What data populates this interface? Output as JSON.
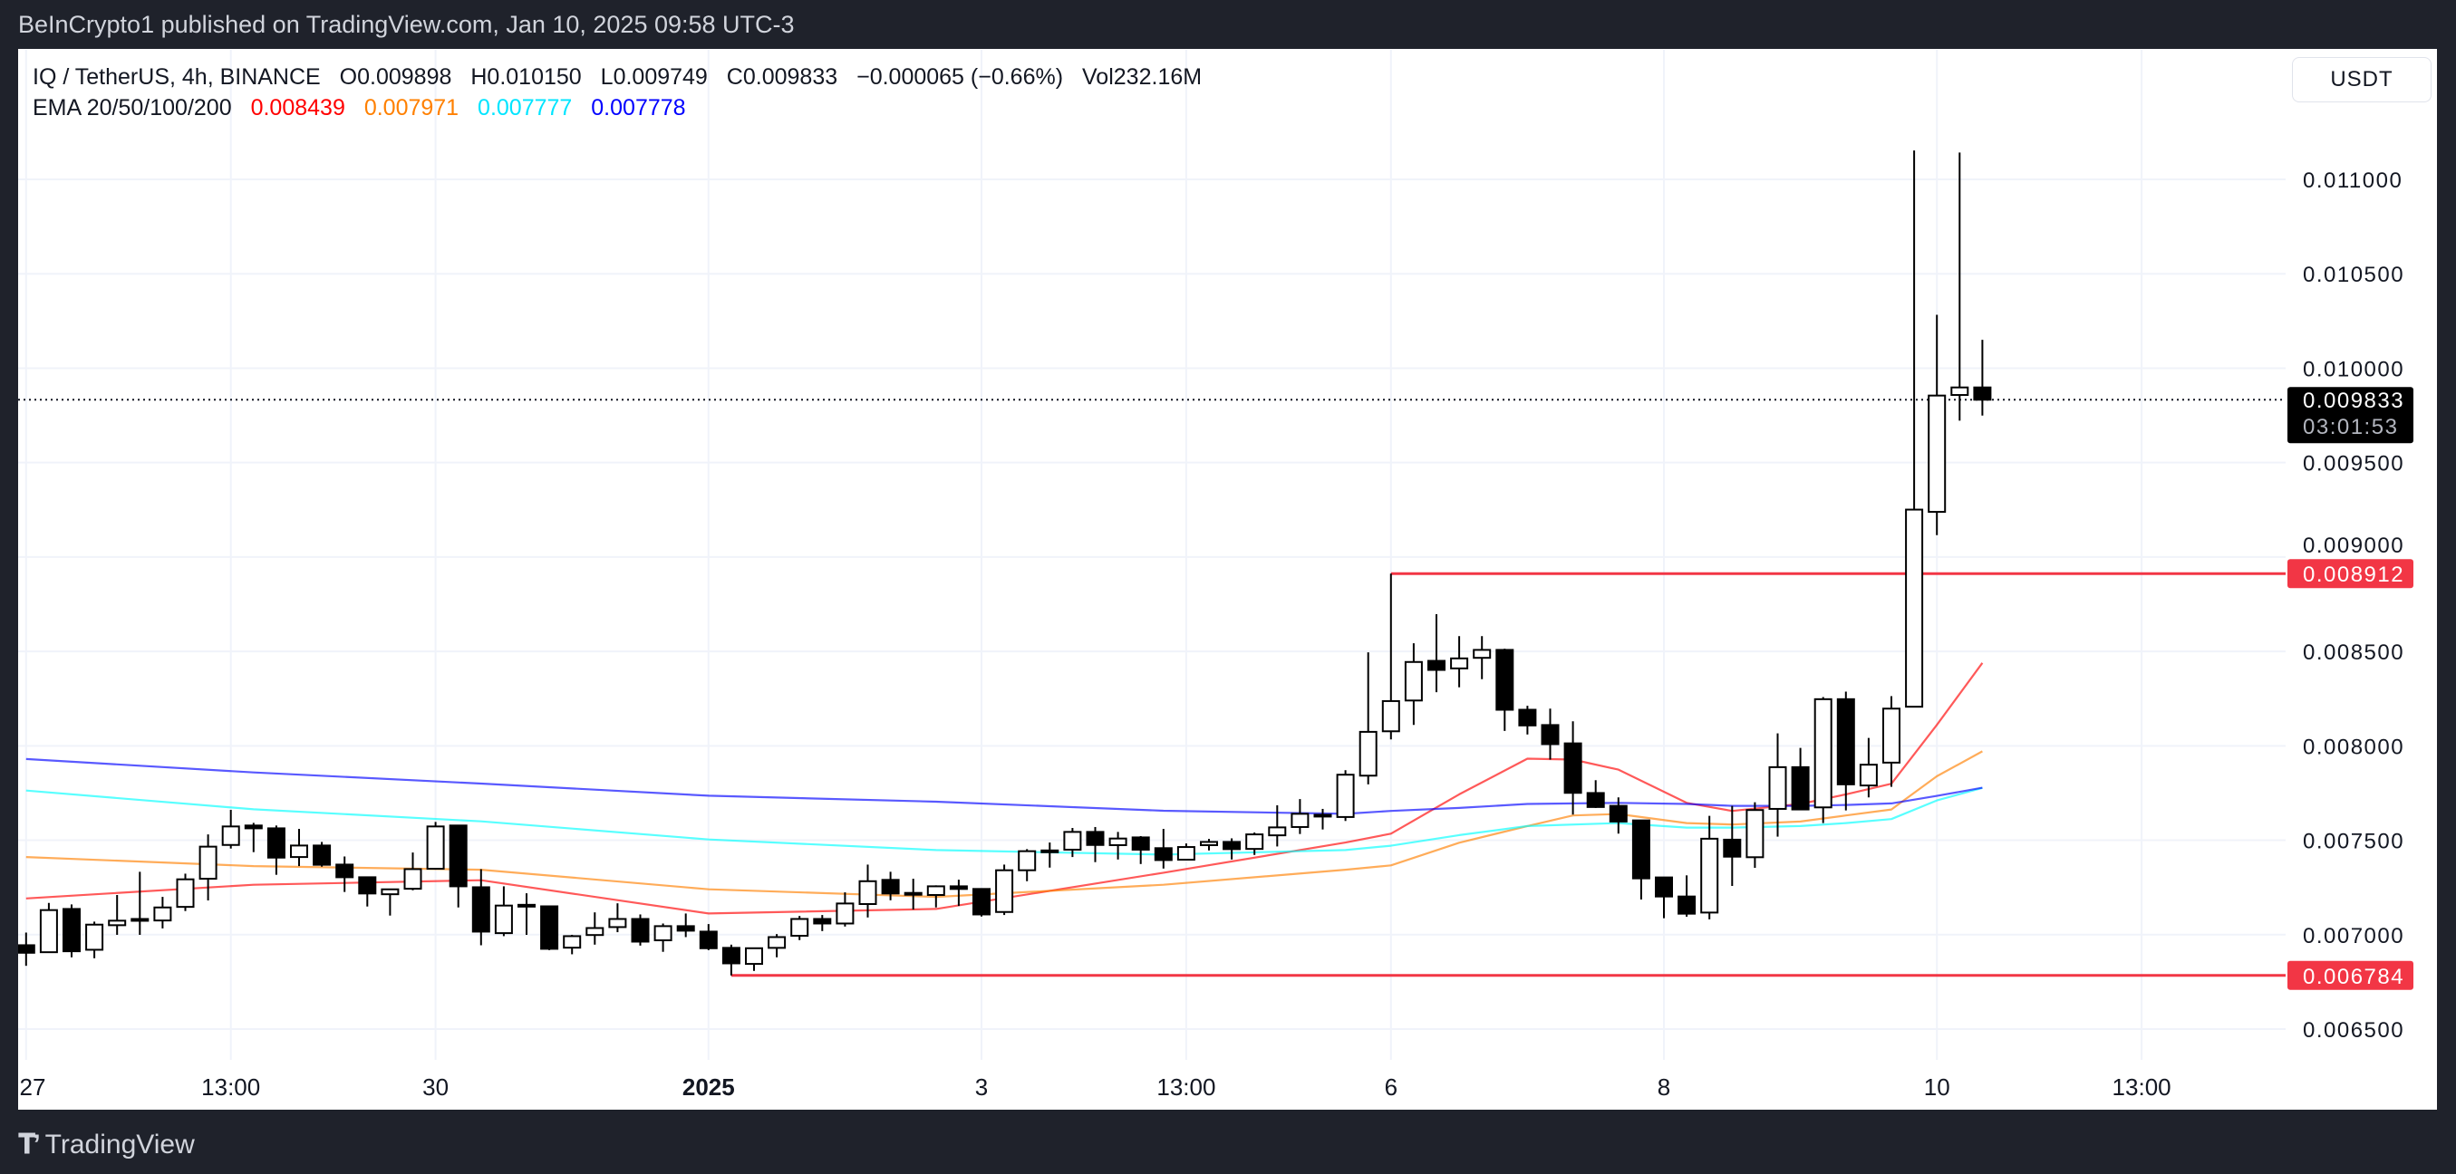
{
  "header": {
    "published": "BeInCrypto1 published on TradingView.com, Jan 10, 2025 09:58 UTC-3"
  },
  "legend": {
    "symbol": "IQ / TetherUS, 4h, BINANCE",
    "open_label": "O",
    "open": "0.009898",
    "high_label": "H",
    "high": "0.010150",
    "low_label": "L",
    "low": "0.009749",
    "close_label": "C",
    "close": "0.009833",
    "change": "−0.000065 (−0.66%)",
    "vol_label": "Vol",
    "vol": "232.16M",
    "ema_label": "EMA 20/50/100/200",
    "ema_values": [
      "0.008439",
      "0.007971",
      "0.007777",
      "0.007778"
    ]
  },
  "currency_button": "USDT",
  "footer": {
    "brand": "TradingView",
    "logo_text": "TV"
  },
  "chart_data": {
    "type": "candlestick",
    "interval": "4h",
    "ylim": [
      0.006073,
      0.011686
    ],
    "grid": true,
    "y_ticks": [
      "0.006500",
      "0.007000",
      "0.007500",
      "0.008000",
      "0.008500",
      "0.009000",
      "0.009500",
      "0.010000",
      "0.010500",
      "0.011000"
    ],
    "x_ticks": [
      {
        "bar": 0,
        "label": "27",
        "bold": false
      },
      {
        "bar": 9,
        "label": "13:00",
        "bold": false
      },
      {
        "bar": 18,
        "label": "30",
        "bold": false
      },
      {
        "bar": 30,
        "label": "2025",
        "bold": true
      },
      {
        "bar": 42,
        "label": "3",
        "bold": false
      },
      {
        "bar": 51,
        "label": "13:00",
        "bold": false
      },
      {
        "bar": 60,
        "label": "6",
        "bold": false
      },
      {
        "bar": 72,
        "label": "8",
        "bold": false
      },
      {
        "bar": 84,
        "label": "10",
        "bold": false
      },
      {
        "bar": 93,
        "label": "13:00",
        "bold": false
      }
    ],
    "colors": {
      "up_fill": "#ffffff",
      "down_fill": "#000000",
      "outline": "#000000",
      "level": "#f23645"
    },
    "ohlc": [
      [
        0.006944,
        0.007011,
        0.006835,
        0.006904
      ],
      [
        0.006907,
        0.007168,
        0.006907,
        0.00713
      ],
      [
        0.007136,
        0.00716,
        0.00688,
        0.006912
      ],
      [
        0.00692,
        0.007069,
        0.006875,
        0.007053
      ],
      [
        0.00705,
        0.00721,
        0.006999,
        0.007074
      ],
      [
        0.00708,
        0.007333,
        0.006999,
        0.007083
      ],
      [
        0.007075,
        0.0072,
        0.007033,
        0.007144
      ],
      [
        0.007147,
        0.007323,
        0.007125,
        0.007293
      ],
      [
        0.007296,
        0.007531,
        0.007181,
        0.007466
      ],
      [
        0.007475,
        0.007661,
        0.007456,
        0.007573
      ],
      [
        0.007578,
        0.007592,
        0.007437,
        0.007563
      ],
      [
        0.007563,
        0.007578,
        0.007317,
        0.007408
      ],
      [
        0.007411,
        0.00756,
        0.007363,
        0.007472
      ],
      [
        0.007472,
        0.007491,
        0.00736,
        0.00737
      ],
      [
        0.007371,
        0.007414,
        0.007226,
        0.007304
      ],
      [
        0.007304,
        0.007304,
        0.007149,
        0.007218
      ],
      [
        0.007214,
        0.00724,
        0.007101,
        0.00724
      ],
      [
        0.007243,
        0.007435,
        0.007235,
        0.007347
      ],
      [
        0.007349,
        0.007597,
        0.007344,
        0.007573
      ],
      [
        0.007578,
        0.007581,
        0.007144,
        0.007256
      ],
      [
        0.007251,
        0.007347,
        0.006944,
        0.007016
      ],
      [
        0.007008,
        0.007256,
        0.006992,
        0.007154
      ],
      [
        0.007155,
        0.007219,
        0.006999,
        0.007158
      ],
      [
        0.00715,
        0.00715,
        0.006918,
        0.006925
      ],
      [
        0.006931,
        0.006999,
        0.006896,
        0.006992
      ],
      [
        0.006998,
        0.007118,
        0.006947,
        0.007035
      ],
      [
        0.00704,
        0.007166,
        0.007013,
        0.007083
      ],
      [
        0.007083,
        0.007107,
        0.006942,
        0.006963
      ],
      [
        0.00697,
        0.007059,
        0.006909,
        0.007045
      ],
      [
        0.007045,
        0.007112,
        0.006987,
        0.007021
      ],
      [
        0.007016,
        0.007056,
        0.006918,
        0.006928
      ],
      [
        0.00693,
        0.006947,
        0.006784,
        0.006848
      ],
      [
        0.006845,
        0.006928,
        0.006808,
        0.006928
      ],
      [
        0.00693,
        0.007003,
        0.00688,
        0.006987
      ],
      [
        0.006994,
        0.007099,
        0.006971,
        0.007083
      ],
      [
        0.007083,
        0.007104,
        0.007019,
        0.007059
      ],
      [
        0.007059,
        0.007224,
        0.007043,
        0.007165
      ],
      [
        0.007162,
        0.007371,
        0.007091,
        0.007283
      ],
      [
        0.00729,
        0.007333,
        0.007182,
        0.007218
      ],
      [
        0.007218,
        0.007296,
        0.007133,
        0.007221
      ],
      [
        0.00721,
        0.007261,
        0.007144,
        0.007256
      ],
      [
        0.007256,
        0.007291,
        0.007152,
        0.007242
      ],
      [
        0.007242,
        0.007242,
        0.007096,
        0.007107
      ],
      [
        0.00712,
        0.007371,
        0.007104,
        0.007341
      ],
      [
        0.007341,
        0.007453,
        0.007283,
        0.007442
      ],
      [
        0.007443,
        0.007488,
        0.007355,
        0.007446
      ],
      [
        0.00745,
        0.007565,
        0.007411,
        0.007544
      ],
      [
        0.007544,
        0.00757,
        0.007384,
        0.007475
      ],
      [
        0.007474,
        0.007544,
        0.007398,
        0.007509
      ],
      [
        0.007515,
        0.007522,
        0.007374,
        0.00745
      ],
      [
        0.007458,
        0.00756,
        0.00735,
        0.007395
      ],
      [
        0.007397,
        0.007483,
        0.007397,
        0.007464
      ],
      [
        0.007474,
        0.007507,
        0.007446,
        0.007491
      ],
      [
        0.007491,
        0.00751,
        0.007398,
        0.007453
      ],
      [
        0.007454,
        0.007541,
        0.007422,
        0.007531
      ],
      [
        0.007526,
        0.007685,
        0.007467,
        0.007568
      ],
      [
        0.00757,
        0.007718,
        0.007533,
        0.00764
      ],
      [
        0.007632,
        0.007666,
        0.007557,
        0.007635
      ],
      [
        0.007623,
        0.007871,
        0.007602,
        0.007847
      ],
      [
        0.007842,
        0.008495,
        0.007796,
        0.008074
      ],
      [
        0.008077,
        0.008912,
        0.008034,
        0.008237
      ],
      [
        0.00824,
        0.008543,
        0.008111,
        0.008444
      ],
      [
        0.00845,
        0.008697,
        0.008284,
        0.008402
      ],
      [
        0.00841,
        0.008581,
        0.00831,
        0.008463
      ],
      [
        0.008466,
        0.008581,
        0.008353,
        0.008508
      ],
      [
        0.008508,
        0.008514,
        0.008079,
        0.008191
      ],
      [
        0.008191,
        0.008212,
        0.00806,
        0.008108
      ],
      [
        0.00811,
        0.008197,
        0.007927,
        0.008009
      ],
      [
        0.008013,
        0.00813,
        0.007636,
        0.007751
      ],
      [
        0.00775,
        0.007818,
        0.007671,
        0.007676
      ],
      [
        0.007682,
        0.007727,
        0.007535,
        0.007599
      ],
      [
        0.007605,
        0.007605,
        0.007186,
        0.007298
      ],
      [
        0.007303,
        0.007303,
        0.007087,
        0.007202
      ],
      [
        0.007202,
        0.007314,
        0.007095,
        0.007111
      ],
      [
        0.007117,
        0.007629,
        0.007081,
        0.007508
      ],
      [
        0.007503,
        0.007682,
        0.007258,
        0.007413
      ],
      [
        0.00741,
        0.007701,
        0.007354,
        0.00766
      ],
      [
        0.007666,
        0.008066,
        0.007519,
        0.007887
      ],
      [
        0.007887,
        0.007989,
        0.007663,
        0.007663
      ],
      [
        0.007674,
        0.008258,
        0.007591,
        0.008247
      ],
      [
        0.008247,
        0.008287,
        0.007658,
        0.007796
      ],
      [
        0.00779,
        0.008042,
        0.007727,
        0.0079
      ],
      [
        0.007911,
        0.008263,
        0.007783,
        0.008197
      ],
      [
        0.008207,
        0.011153,
        0.008207,
        0.009251
      ],
      [
        0.009239,
        0.010283,
        0.009116,
        0.009855
      ],
      [
        0.009858,
        0.011142,
        0.009722,
        0.009898
      ],
      [
        0.009898,
        0.01015,
        0.009749,
        0.009833
      ]
    ],
    "ema": [
      {
        "period": 20,
        "color": "#ff0000",
        "points": [
          [
            0,
            0.007192
          ],
          [
            10,
            0.007264
          ],
          [
            20,
            0.007288
          ],
          [
            30,
            0.007112
          ],
          [
            40,
            0.007136
          ],
          [
            50,
            0.007328
          ],
          [
            58,
            0.007488
          ],
          [
            60,
            0.007535
          ],
          [
            63,
            0.007743
          ],
          [
            66,
            0.007932
          ],
          [
            68,
            0.007927
          ],
          [
            70,
            0.007874
          ],
          [
            73,
            0.007698
          ],
          [
            75,
            0.007655
          ],
          [
            78,
            0.007692
          ],
          [
            80,
            0.007743
          ],
          [
            82,
            0.007799
          ],
          [
            84,
            0.008111
          ],
          [
            86,
            0.008439
          ]
        ]
      },
      {
        "period": 50,
        "color": "#ff8000",
        "points": [
          [
            0,
            0.007411
          ],
          [
            10,
            0.007363
          ],
          [
            20,
            0.007344
          ],
          [
            30,
            0.00724
          ],
          [
            40,
            0.0072
          ],
          [
            50,
            0.007264
          ],
          [
            58,
            0.007344
          ],
          [
            60,
            0.007367
          ],
          [
            63,
            0.007487
          ],
          [
            66,
            0.007575
          ],
          [
            68,
            0.007631
          ],
          [
            70,
            0.007639
          ],
          [
            73,
            0.007591
          ],
          [
            75,
            0.007583
          ],
          [
            78,
            0.007599
          ],
          [
            80,
            0.007631
          ],
          [
            82,
            0.007663
          ],
          [
            84,
            0.007839
          ],
          [
            86,
            0.007971
          ]
        ]
      },
      {
        "period": 100,
        "color": "#00ffff",
        "points": [
          [
            0,
            0.007763
          ],
          [
            10,
            0.007664
          ],
          [
            20,
            0.0076
          ],
          [
            30,
            0.007504
          ],
          [
            40,
            0.007448
          ],
          [
            50,
            0.007424
          ],
          [
            58,
            0.007448
          ],
          [
            60,
            0.007471
          ],
          [
            63,
            0.007527
          ],
          [
            66,
            0.007575
          ],
          [
            70,
            0.007591
          ],
          [
            73,
            0.007567
          ],
          [
            75,
            0.007567
          ],
          [
            78,
            0.007575
          ],
          [
            80,
            0.007591
          ],
          [
            82,
            0.007612
          ],
          [
            84,
            0.007711
          ],
          [
            86,
            0.007777
          ]
        ]
      },
      {
        "period": 200,
        "color": "#0000ff",
        "points": [
          [
            0,
            0.00793
          ],
          [
            10,
            0.007859
          ],
          [
            20,
            0.0078
          ],
          [
            30,
            0.007736
          ],
          [
            40,
            0.007704
          ],
          [
            50,
            0.007656
          ],
          [
            58,
            0.00764
          ],
          [
            60,
            0.007655
          ],
          [
            63,
            0.007671
          ],
          [
            66,
            0.007692
          ],
          [
            70,
            0.007698
          ],
          [
            73,
            0.007692
          ],
          [
            75,
            0.007682
          ],
          [
            78,
            0.007682
          ],
          [
            80,
            0.007687
          ],
          [
            82,
            0.007695
          ],
          [
            84,
            0.007735
          ],
          [
            86,
            0.007778
          ]
        ]
      }
    ],
    "levels": [
      {
        "price": 0.008912,
        "label": "0.008912",
        "from_bar": 60
      },
      {
        "price": 0.006784,
        "label": "0.006784",
        "from_bar": 31
      }
    ],
    "last_price": {
      "label": "0.009833",
      "value": 0.009833,
      "countdown": "03:01:53"
    }
  }
}
